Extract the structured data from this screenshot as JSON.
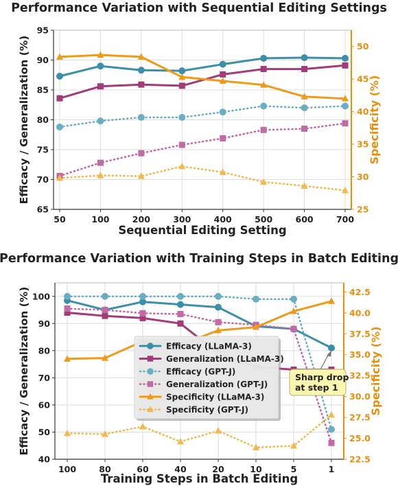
{
  "colors": {
    "efficacy_llama": "#3b8fa8",
    "generalization_llama": "#a33b78",
    "efficacy_gptj": "#6aaec4",
    "generalization_gptj": "#c16aa3",
    "specificity_llama": "#f09a1a",
    "specificity_gptj": "#f2b94d",
    "right_axis": "#e8900e",
    "annotation_bg": "#fbf7b0"
  },
  "chart_data": [
    {
      "type": "line",
      "title": "Performance Variation with Sequential Editing Settings",
      "xlabel": "Sequential Editing Setting",
      "ylabel": "Efficacy / Generalization (%)",
      "ylabel_right": "Specificity (%)",
      "categories": [
        "50",
        "100",
        "200",
        "300",
        "400",
        "500",
        "600",
        "700"
      ],
      "ylim": [
        65,
        95
      ],
      "yticks": [
        65,
        70,
        75,
        80,
        85,
        90,
        95
      ],
      "ylim_right": [
        25,
        52.5
      ],
      "yticks_right": [
        25,
        30,
        35,
        40,
        45,
        50
      ],
      "grid": true,
      "legend": "none",
      "series": [
        {
          "key": "efficacy_llama",
          "axis": "left",
          "style": "solid",
          "marker": "circle",
          "values": [
            87.3,
            89.0,
            88.3,
            88.2,
            89.3,
            90.3,
            90.4,
            90.3
          ]
        },
        {
          "key": "generalization_llama",
          "axis": "left",
          "style": "solid",
          "marker": "square",
          "values": [
            83.6,
            85.6,
            85.9,
            85.7,
            87.6,
            88.5,
            88.5,
            89.1
          ]
        },
        {
          "key": "efficacy_gptj",
          "axis": "left",
          "style": "dotted",
          "marker": "circle",
          "values": [
            78.8,
            79.8,
            80.4,
            80.4,
            81.3,
            82.3,
            82.0,
            82.3
          ]
        },
        {
          "key": "generalization_gptj",
          "axis": "left",
          "style": "dotted",
          "marker": "square",
          "values": [
            70.6,
            72.8,
            74.4,
            75.8,
            76.9,
            78.3,
            78.5,
            79.4
          ]
        },
        {
          "key": "specificity_llama",
          "axis": "right",
          "style": "solid",
          "marker": "triangle",
          "values": [
            48.4,
            48.7,
            48.4,
            45.3,
            44.7,
            44.1,
            42.3,
            42.0
          ]
        },
        {
          "key": "specificity_gptj",
          "axis": "right",
          "style": "dotted",
          "marker": "triangle",
          "values": [
            29.8,
            30.2,
            30.1,
            31.6,
            30.7,
            29.2,
            28.6,
            27.9
          ]
        }
      ]
    },
    {
      "type": "line",
      "title": "Performance Variation with Training Steps in Batch Editing",
      "xlabel": "Training Steps in Batch Editing",
      "ylabel": "Efficacy / Generalization (%)",
      "ylabel_right": "Specificity (%)",
      "categories": [
        "100",
        "80",
        "60",
        "40",
        "20",
        "10",
        "5",
        "1"
      ],
      "ylim": [
        40,
        105
      ],
      "yticks": [
        40,
        50,
        60,
        70,
        80,
        90,
        100
      ],
      "ylim_right": [
        22.5,
        43.6
      ],
      "yticks_right": [
        22.5,
        25.0,
        27.5,
        30.0,
        32.5,
        35.0,
        37.5,
        40.0,
        42.5
      ],
      "grid": true,
      "legend": "center",
      "series": [
        {
          "key": "efficacy_llama",
          "name": "Efficacy (LLaMA-3)",
          "axis": "left",
          "style": "solid",
          "marker": "circle",
          "values": [
            98.5,
            95.0,
            98.0,
            97.0,
            96.0,
            89.0,
            88.0,
            81.0
          ]
        },
        {
          "key": "generalization_llama",
          "name": "Generalization (LLaMA-3)",
          "axis": "left",
          "style": "solid",
          "marker": "square",
          "values": [
            94.0,
            92.8,
            92.0,
            90.0,
            79.0,
            74.0,
            73.0,
            73.0
          ]
        },
        {
          "key": "efficacy_gptj",
          "name": "Efficacy (GPT-J)",
          "axis": "left",
          "style": "dotted",
          "marker": "circle",
          "values": [
            100.0,
            100.0,
            100.0,
            100.0,
            100.0,
            99.0,
            99.0,
            51.0
          ]
        },
        {
          "key": "generalization_gptj",
          "name": "Generalization (GPT-J)",
          "axis": "left",
          "style": "dotted",
          "marker": "square",
          "values": [
            95.5,
            95.0,
            93.8,
            93.5,
            90.5,
            89.5,
            88.0,
            46.0
          ]
        },
        {
          "key": "specificity_llama",
          "name": "Specificity (LLaMA-3)",
          "axis": "right",
          "style": "solid",
          "marker": "triangle",
          "values": [
            34.5,
            34.6,
            36.6,
            36.2,
            37.9,
            38.3,
            40.2,
            41.4
          ]
        },
        {
          "key": "specificity_gptj",
          "name": "Specificity (GPT-J)",
          "axis": "right",
          "style": "dotted",
          "marker": "triangle",
          "values": [
            25.6,
            25.5,
            26.4,
            24.6,
            25.9,
            23.9,
            24.1,
            27.8
          ]
        }
      ],
      "annotation": {
        "text_line1": "Sharp drop",
        "text_line2": "at step 1",
        "series": "efficacy_llama",
        "category": "1"
      }
    }
  ]
}
